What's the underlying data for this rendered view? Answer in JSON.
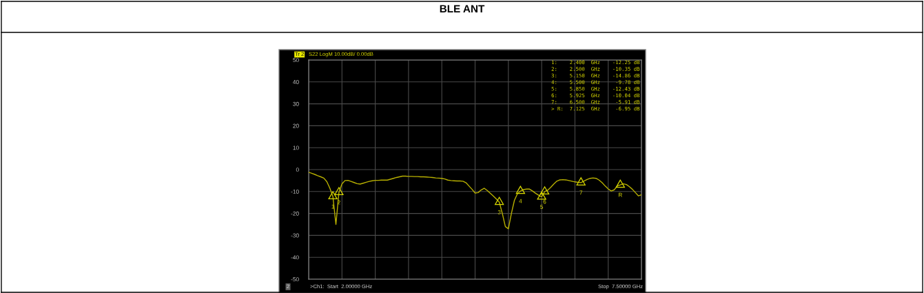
{
  "chart_data": {
    "type": "line",
    "title": "BLE ANT",
    "categories": [
      null,
      null,
      null,
      null,
      null,
      null,
      null,
      null,
      null,
      null,
      null,
      null,
      null,
      null,
      null,
      null,
      null,
      null,
      null,
      null,
      null,
      null,
      null,
      null,
      null,
      null,
      null,
      null,
      null,
      null,
      null,
      null,
      null,
      null,
      null,
      null,
      null,
      null,
      null,
      null,
      null,
      null,
      null,
      null,
      null,
      null,
      null,
      null,
      null,
      null,
      null,
      null,
      null,
      null,
      null,
      null,
      null,
      null,
      null,
      null,
      null,
      null,
      null,
      null,
      null,
      null,
      null,
      null,
      null,
      null,
      null,
      null,
      null,
      null,
      null,
      null,
      null,
      null,
      null,
      null,
      null,
      null,
      null,
      null,
      null,
      null,
      null,
      null,
      null,
      null,
      null,
      null,
      null,
      null,
      null,
      null,
      null,
      null,
      null,
      null,
      null,
      null,
      null,
      null,
      null,
      null,
      null,
      null,
      null,
      null,
      null
    ],
    "ylim": [
      -50,
      50
    ],
    "yticks": [
      -50,
      -40,
      -30,
      -20,
      -10,
      0,
      10,
      20,
      30,
      40,
      50
    ],
    "grid": true,
    "tick_labels": "y",
    "series": [
      {
        "color": "#b8b000",
        "values": [
          -1.2,
          -1.7,
          -2.2,
          -2.8,
          -3.3,
          -3.9,
          -5.5,
          -8.5,
          -12.25,
          -25,
          -10.35,
          -6.5,
          -5.0,
          -4.9,
          -5.4,
          -5.9,
          -6.4,
          -6.6,
          -6.2,
          -5.8,
          -5.4,
          -5.1,
          -4.9,
          -4.9,
          -4.8,
          -4.8,
          -4.8,
          -4.4,
          -4.0,
          -3.6,
          -3.3,
          -3.0,
          -3.0,
          -3.1,
          -3.1,
          -3.2,
          -3.2,
          -3.3,
          -3.3,
          -3.4,
          -3.5,
          -3.6,
          -3.8,
          -3.9,
          -4.0,
          -4.3,
          -4.8,
          -5.0,
          -5.1,
          -5.2,
          -5.2,
          -5.3,
          -6.0,
          -7.5,
          -9.0,
          -10.7,
          -10.5,
          -9.3,
          -8.5,
          -9.5,
          -10.8,
          -12.0,
          -13.4,
          -14.86,
          -20,
          -26,
          -27,
          -20,
          -14,
          -11,
          -9.78,
          -9.1,
          -8.9,
          -8.9,
          -9.8,
          -10.8,
          -11.7,
          -12.43,
          -10.04,
          -9.4,
          -8.1,
          -6.6,
          -5.3,
          -4.7,
          -4.6,
          -4.7,
          -5.0,
          -5.3,
          -5.6,
          -5.8,
          -5.91,
          -5.2,
          -4.5,
          -4.0,
          -3.8,
          -4.0,
          -4.8,
          -6.0,
          -7.5,
          -8.8,
          -9.8,
          -9.2,
          -7.5,
          -6.95,
          -6.5,
          -6.8,
          -7.8,
          -9.0,
          -10.5,
          -12.0,
          -11.5
        ]
      }
    ],
    "annotations": [
      "Tr 2",
      "S22 LogM 10.00dB/ 0.00dB",
      "1:    2.400  GHz    -12.25 dB",
      "2:    2.500  GHz    -10.35 dB",
      "3:    5.150  GHz    -14.86 dB",
      "4:    5.500  GHz     -9.78 dB",
      "5:    5.850  GHz    -12.43 dB",
      "6:    5.925  GHz    -10.04 dB",
      "7:    6.500  GHz     -5.91 dB",
      "> R:  7.125  GHz     -6.95 dB",
      ">Ch1:  Start  2.00000 GHz",
      "Stop  7.50000 GHz",
      "2",
      {
        "text": "1",
        "y": -12.25
      },
      {
        "text": "2",
        "y": -10.35
      },
      {
        "text": "3",
        "y": -14.86
      },
      {
        "text": "4",
        "y": -9.78
      },
      {
        "text": "5",
        "y": -12.43
      },
      {
        "text": "6",
        "y": -10.04
      },
      {
        "text": "7",
        "y": -5.91
      },
      {
        "text": "R",
        "y": -6.95
      }
    ]
  }
}
